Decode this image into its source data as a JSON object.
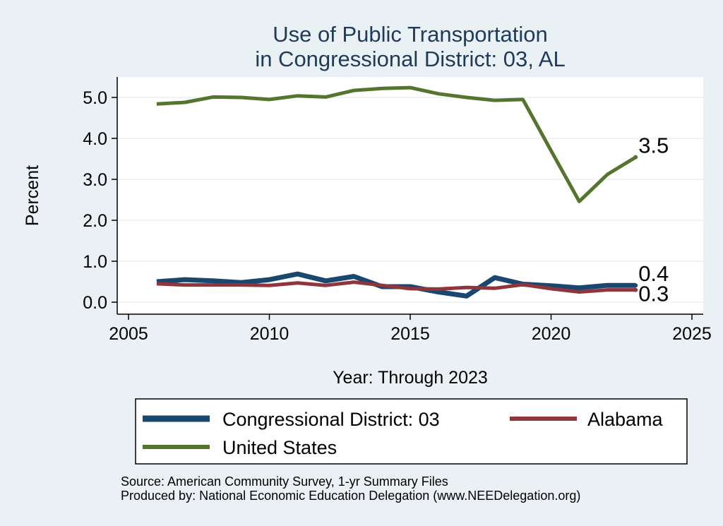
{
  "chart_data": {
    "type": "line",
    "title": [
      "Use of Public Transportation",
      "in Congressional District: 03, AL"
    ],
    "xlabel": "Year: Through 2023",
    "ylabel": "Percent",
    "xlim": [
      2005,
      2025
    ],
    "ylim": [
      0,
      5.5
    ],
    "x_ticks": [
      2005,
      2010,
      2015,
      2020,
      2025
    ],
    "y_ticks": [
      0,
      1,
      2,
      3,
      4,
      5
    ],
    "y_tick_labels": [
      "0.0",
      "1.0",
      "2.0",
      "3.0",
      "4.0",
      "5.0"
    ],
    "grid": true,
    "legend": "bottom",
    "x": [
      2006,
      2007,
      2008,
      2009,
      2010,
      2011,
      2012,
      2013,
      2014,
      2015,
      2016,
      2017,
      2018,
      2019,
      2020,
      2021,
      2022,
      2023
    ],
    "series": [
      {
        "name": "Congressional District: 03",
        "color": "#1a476f",
        "values": [
          0.5,
          0.55,
          0.52,
          0.48,
          0.55,
          0.69,
          0.52,
          0.63,
          0.38,
          0.38,
          0.25,
          0.15,
          0.6,
          0.44,
          0.4,
          0.35,
          0.41,
          0.41
        ],
        "end_label": "0.4"
      },
      {
        "name": "Alabama",
        "color": "#90353b",
        "values": [
          0.45,
          0.42,
          0.42,
          0.42,
          0.41,
          0.47,
          0.41,
          0.49,
          0.41,
          0.33,
          0.32,
          0.36,
          0.34,
          0.43,
          0.33,
          0.25,
          0.3,
          0.3
        ],
        "end_label": "0.3"
      },
      {
        "name": "United States",
        "color": "#55752f",
        "values": [
          4.84,
          4.88,
          5.01,
          5.0,
          4.95,
          5.04,
          5.01,
          5.17,
          5.22,
          5.24,
          5.09,
          5.0,
          4.93,
          4.95,
          3.7,
          2.46,
          3.12,
          3.54
        ],
        "end_label": "3.5"
      }
    ],
    "source_lines": [
      "Source: American Community Survey, 1-yr Summary Files",
      "Produced by: National Economic Education Delegation (www.NEEDelegation.org)"
    ]
  }
}
